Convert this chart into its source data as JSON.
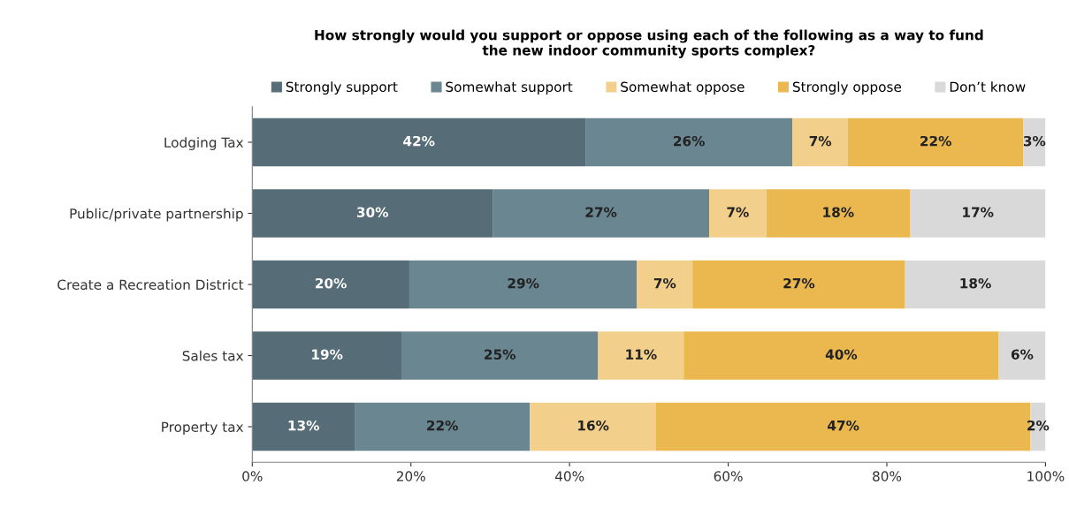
{
  "chart_data": {
    "type": "bar",
    "orientation": "horizontal",
    "stacked": true,
    "legend": "top",
    "grid": false,
    "title": "How strongly would you support or oppose using each of the following as a way to fund\nthe new indoor community sports complex?",
    "categories": [
      "Lodging Tax",
      "Public/private partnership",
      "Create a Recreation District",
      "Sales tax",
      "Property tax"
    ],
    "series": [
      {
        "name": "Strongly support",
        "color": "#566c76",
        "values": [
          42,
          30.3,
          19.8,
          18.8,
          12.9
        ],
        "value_labels": [
          "42%",
          "30%",
          "20%",
          "19%",
          "13%"
        ]
      },
      {
        "name": "Somewhat support",
        "color": "#6a8690",
        "values": [
          26.1,
          27.3,
          28.7,
          24.8,
          22.1
        ],
        "value_labels": [
          "26%",
          "27%",
          "29%",
          "25%",
          "22%"
        ]
      },
      {
        "name": "Somewhat oppose",
        "color": "#f2d08c",
        "values": [
          7,
          7.2,
          7,
          10.8,
          15.9
        ],
        "value_labels": [
          "7%",
          "7%",
          "7%",
          "11%",
          "16%"
        ]
      },
      {
        "name": "Strongly oppose",
        "color": "#eab84f",
        "values": [
          22.1,
          18.1,
          26.8,
          39.7,
          47.2
        ],
        "value_labels": [
          "22%",
          "18%",
          "27%",
          "40%",
          "47%"
        ]
      },
      {
        "name": "Don’t know",
        "color": "#d9d9d9",
        "values": [
          2.8,
          17.1,
          17.7,
          5.9,
          1.9
        ],
        "value_labels": [
          "3%",
          "17%",
          "18%",
          "6%",
          "2%"
        ]
      }
    ],
    "xlim": [
      0,
      100
    ],
    "xticks": [
      {
        "value": 0,
        "label": "0%"
      },
      {
        "value": 20,
        "label": "20%"
      },
      {
        "value": 40,
        "label": "40%"
      },
      {
        "value": 60,
        "label": "60%"
      },
      {
        "value": 80,
        "label": "80%"
      },
      {
        "value": 100,
        "label": "100%"
      }
    ]
  }
}
